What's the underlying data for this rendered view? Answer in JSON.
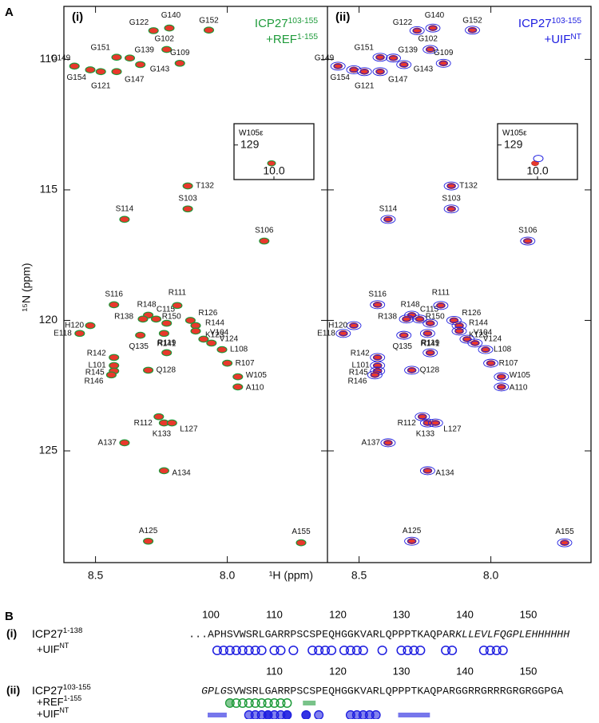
{
  "figure": {
    "panel_a": "A",
    "panel_b": "B"
  },
  "spectra": [
    {
      "label": "(i)",
      "name": "ICP27",
      "name_sup": "103-155",
      "partner": "+REF",
      "partner_sup": "1-155",
      "color": "#1f9b3b"
    },
    {
      "label": "(ii)",
      "name": "ICP27",
      "name_sup": "103-155",
      "partner": "+UIF",
      "partner_sup": "NT",
      "color": "#1d1de0"
    }
  ],
  "reference_color": "#e8392c",
  "x_axis": {
    "label": "¹H (ppm)",
    "xlim": [
      8.62,
      7.62
    ],
    "xticks": [
      {
        "value": 8.5,
        "label": "8.5"
      },
      {
        "value": 8,
        "label": "8.0"
      }
    ]
  },
  "y_axis": {
    "label": "¹⁵N (ppm)",
    "ylim": [
      107.97,
      129.28
    ],
    "yticks": [
      110,
      115,
      120,
      125
    ]
  },
  "inset": {
    "label": "W105ε",
    "xlim": [
      10.5,
      9.5
    ],
    "ylim": [
      128.2,
      130.3
    ],
    "xticks": [
      {
        "value": 10,
        "label": "10.0"
      }
    ],
    "yticks": [
      129
    ],
    "peak": {
      "h": 10.03,
      "n": 129.69
    }
  },
  "peaks": [
    {
      "label": "G140",
      "h": 8.22,
      "n": 108.8
    },
    {
      "label": "G122",
      "h": 8.28,
      "n": 108.9
    },
    {
      "label": "G152",
      "h": 8.07,
      "n": 108.88
    },
    {
      "label": "G102",
      "h": 8.23,
      "n": 109.62
    },
    {
      "label": "G109",
      "h": 8.18,
      "n": 110.15
    },
    {
      "label": "G151",
      "h": 8.42,
      "n": 109.92
    },
    {
      "label": "G139",
      "h": 8.37,
      "n": 109.95
    },
    {
      "label": "G149",
      "h": 8.58,
      "n": 110.26
    },
    {
      "label": "G143",
      "h": 8.33,
      "n": 110.2
    },
    {
      "label": "G154",
      "h": 8.52,
      "n": 110.4
    },
    {
      "label": "G147",
      "h": 8.42,
      "n": 110.47
    },
    {
      "label": "G121",
      "h": 8.48,
      "n": 110.47
    },
    {
      "label": "T132",
      "h": 8.15,
      "n": 114.85
    },
    {
      "label": "S103",
      "h": 8.15,
      "n": 115.73
    },
    {
      "label": "S114",
      "h": 8.39,
      "n": 116.13
    },
    {
      "label": "S106",
      "h": 7.86,
      "n": 116.96
    },
    {
      "label": "S116",
      "h": 8.43,
      "n": 119.4
    },
    {
      "label": "H120",
      "h": 8.52,
      "n": 120.2
    },
    {
      "label": "R148",
      "h": 8.3,
      "n": 119.8
    },
    {
      "label": "R138",
      "h": 8.32,
      "n": 119.95
    },
    {
      "label": "C115",
      "h": 8.27,
      "n": 119.95
    },
    {
      "label": "R111",
      "h": 8.19,
      "n": 119.43
    },
    {
      "label": "R150",
      "h": 8.23,
      "n": 120.11
    },
    {
      "label": "R126",
      "h": 8.14,
      "n": 120.0
    },
    {
      "label": "R144",
      "h": 8.12,
      "n": 120.2
    },
    {
      "label": "K123",
      "h": 8.12,
      "n": 120.41
    },
    {
      "label": "R141",
      "h": 8.24,
      "n": 120.5
    },
    {
      "label": "Q135",
      "h": 8.33,
      "n": 120.57
    },
    {
      "label": "E118",
      "h": 8.56,
      "n": 120.5
    },
    {
      "label": "V104",
      "h": 8.09,
      "n": 120.72
    },
    {
      "label": "V124",
      "h": 8.06,
      "n": 120.87
    },
    {
      "label": "L108",
      "h": 8.02,
      "n": 121.12
    },
    {
      "label": "R119",
      "h": 8.23,
      "n": 121.24
    },
    {
      "label": "R142",
      "h": 8.43,
      "n": 121.42
    },
    {
      "label": "L101",
      "h": 8.43,
      "n": 121.73
    },
    {
      "label": "R145",
      "h": 8.43,
      "n": 121.94
    },
    {
      "label": "R146",
      "h": 8.44,
      "n": 122.09
    },
    {
      "label": "Q128",
      "h": 8.3,
      "n": 121.91
    },
    {
      "label": "R107",
      "h": 8.0,
      "n": 121.64
    },
    {
      "label": "W105",
      "h": 7.96,
      "n": 122.16
    },
    {
      "label": "A110",
      "h": 7.96,
      "n": 122.55
    },
    {
      "label": "R112",
      "h": 8.26,
      "n": 123.69
    },
    {
      "label": "K133",
      "h": 8.24,
      "n": 123.93
    },
    {
      "label": "L127",
      "h": 8.21,
      "n": 123.93
    },
    {
      "label": "A137",
      "h": 8.39,
      "n": 124.69
    },
    {
      "label": "A134",
      "h": 8.24,
      "n": 125.76
    },
    {
      "label": "A125",
      "h": 8.3,
      "n": 128.46
    },
    {
      "label": "A155",
      "h": 7.72,
      "n": 128.52
    }
  ],
  "sequences": [
    {
      "label": "(i)",
      "name": "ICP27",
      "name_sup": "1-138",
      "numbers": [
        100,
        110,
        120,
        130,
        140,
        150
      ],
      "prefix": "...",
      "sequence": "APHSVWSRLGARRPSCSPEQHGGKVARLQPPPTKAQPAR",
      "tag": "KLLEVLFQGPLEHHHHHH",
      "rows": [
        {
          "name": "+UIF",
          "name_sup": "NT"
        }
      ]
    },
    {
      "label": "(ii)",
      "name": "ICP27",
      "name_sup": "103-155",
      "numbers": [
        110,
        120,
        130,
        140,
        150
      ],
      "tag": "GPLG",
      "sequence": "SVWSRLGARRPSCSPEQHGGKVARLQPPPTKAQPARGGRRGRRRGRGRGGPGA",
      "rows": [
        {
          "name": "+REF",
          "name_sup": "1-155"
        },
        {
          "name": "+UIF",
          "name_sup": "NT"
        }
      ]
    }
  ]
}
